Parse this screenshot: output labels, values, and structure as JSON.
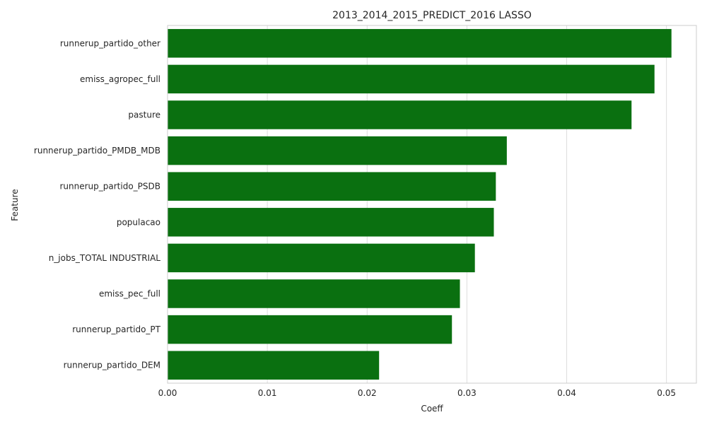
{
  "chart_data": {
    "type": "bar",
    "orientation": "horizontal",
    "title": "2013_2014_2015_PREDICT_2016 LASSO",
    "xlabel": "Coeff",
    "ylabel": "Feature",
    "categories": [
      "runnerup_partido_other",
      "emiss_agropec_full",
      "pasture",
      "runnerup_partido_PMDB_MDB",
      "runnerup_partido_PSDB",
      "populacao",
      "n_jobs_TOTAL INDUSTRIAL",
      "emiss_pec_full",
      "runnerup_partido_PT",
      "runnerup_partido_DEM"
    ],
    "values": [
      0.0505,
      0.0488,
      0.0465,
      0.034,
      0.0329,
      0.0327,
      0.0308,
      0.0293,
      0.0285,
      0.0212
    ],
    "xlim": [
      0,
      0.053
    ],
    "xticks": [
      0.0,
      0.01,
      0.02,
      0.03,
      0.04,
      0.05
    ],
    "xtick_labels": [
      "0.00",
      "0.01",
      "0.02",
      "0.03",
      "0.04",
      "0.05"
    ],
    "grid": "x",
    "bar_color": "#0a7010"
  }
}
